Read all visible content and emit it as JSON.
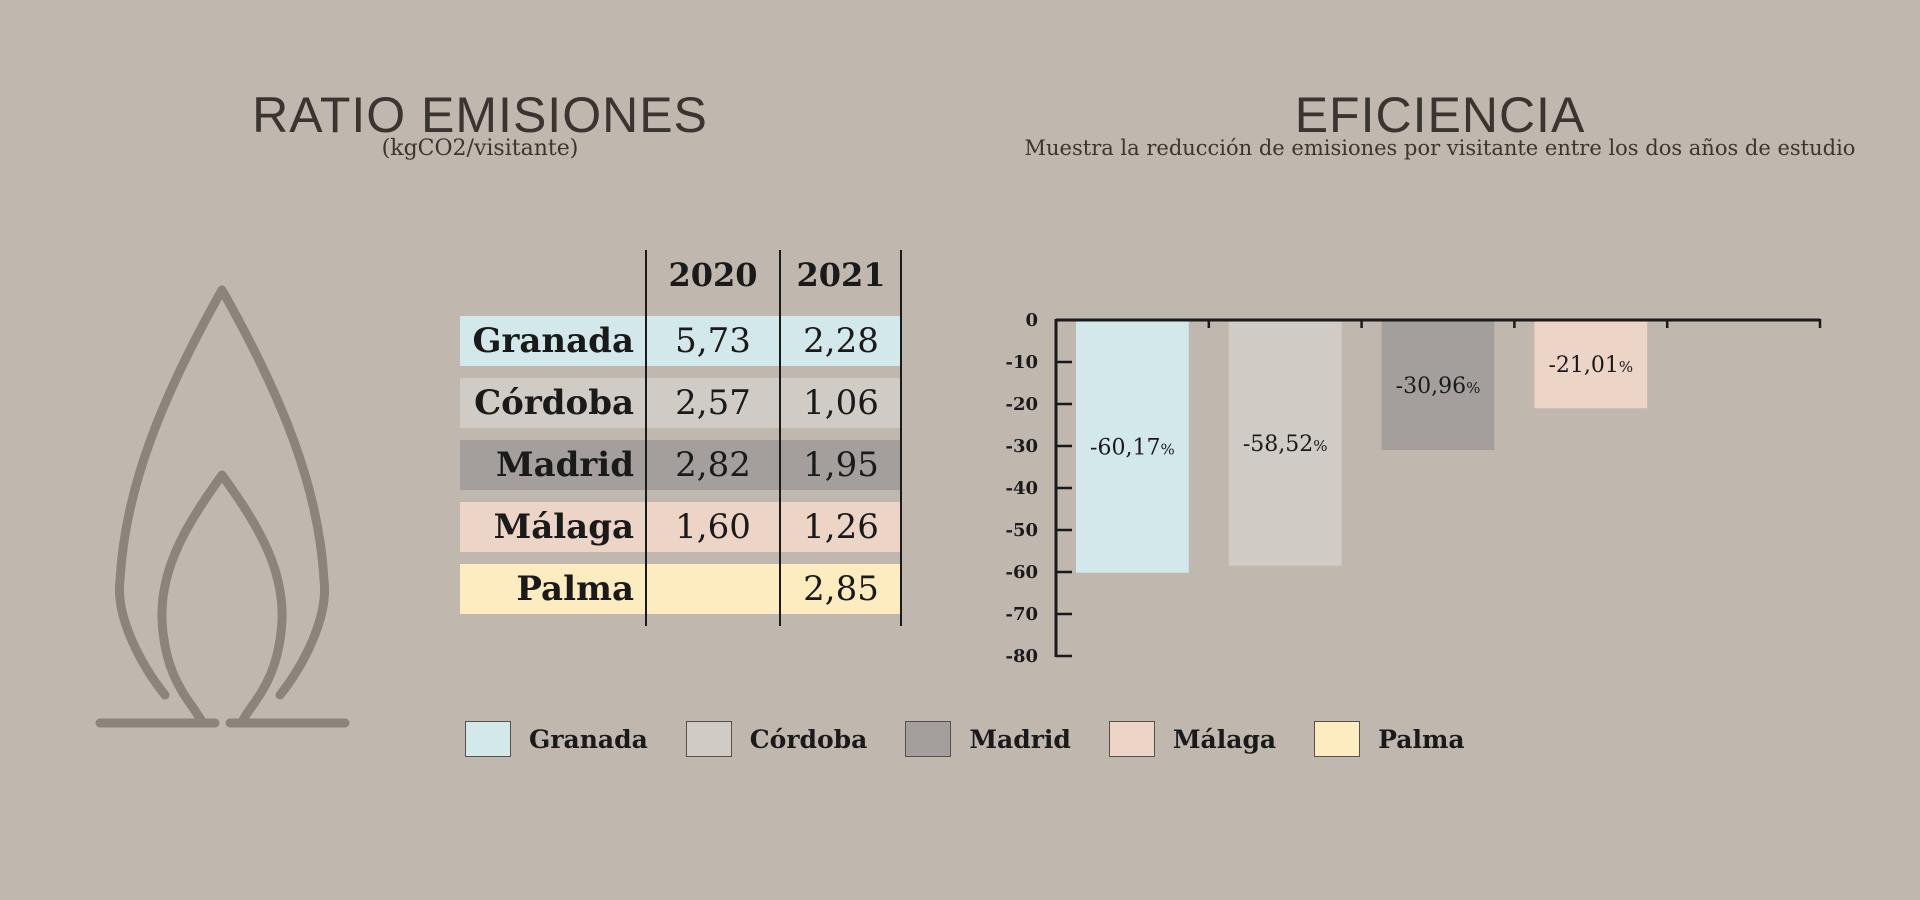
{
  "left_panel": {
    "title": "RATIO EMISIONES",
    "subtitle": "(kgCO2/visitante)",
    "icon": "flame-icon"
  },
  "right_panel": {
    "title": "EFICIENCIA",
    "subtitle": "Muestra la reducción de emisiones por visitante entre los dos años de estudio"
  },
  "table": {
    "headers": [
      "",
      "2020",
      "2021"
    ],
    "rows": [
      {
        "city": "Granada",
        "v2020": "5,73",
        "v2021": "2,28",
        "color": "#d2e8ea"
      },
      {
        "city": "Córdoba",
        "v2020": "2,57",
        "v2021": "1,06",
        "color": "#d0cbc4"
      },
      {
        "city": "Madrid",
        "v2020": "2,82",
        "v2021": "1,95",
        "color": "#a49f9d"
      },
      {
        "city": "Málaga",
        "v2020": "1,60",
        "v2021": "1,26",
        "color": "#ecd4c6"
      },
      {
        "city": "Palma",
        "v2020": "",
        "v2021": "2,85",
        "color": "#fcecc0"
      }
    ]
  },
  "chart_data": {
    "type": "bar",
    "categories": [
      "Granada",
      "Córdoba",
      "Madrid",
      "Málaga"
    ],
    "values": [
      -60.17,
      -58.52,
      -30.96,
      -21.01
    ],
    "data_labels": [
      "-60,17",
      "-58,52",
      "-30,96",
      "-21,01"
    ],
    "label_unit": "%",
    "colors": [
      "#d2e8ea",
      "#d0cbc4",
      "#a49f9d",
      "#ecd4c6"
    ],
    "yticks": [
      0,
      -10,
      -20,
      -30,
      -40,
      -50,
      -60,
      -70,
      -80
    ],
    "ylim": [
      -80,
      0
    ],
    "title": "",
    "xlabel": "",
    "ylabel": "",
    "grid": false,
    "x_slots": 5
  },
  "legend": [
    {
      "label": "Granada",
      "color": "#d2e8ea"
    },
    {
      "label": "Córdoba",
      "color": "#d0cbc4"
    },
    {
      "label": "Madrid",
      "color": "#a49f9d"
    },
    {
      "label": "Málaga",
      "color": "#ecd4c6"
    },
    {
      "label": "Palma",
      "color": "#fcecc0"
    }
  ]
}
